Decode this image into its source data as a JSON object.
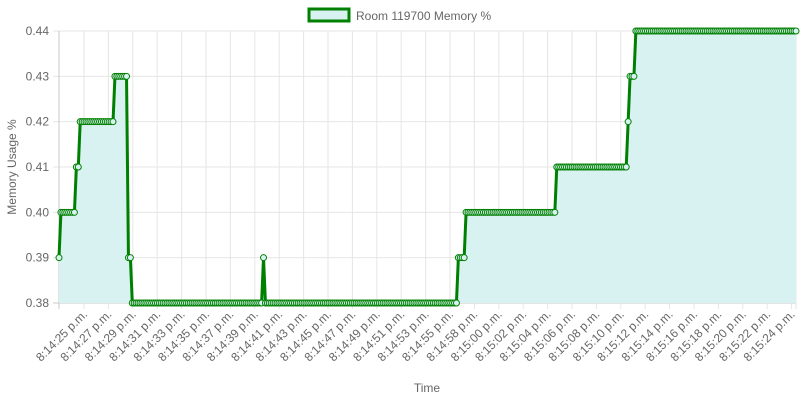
{
  "chart_data": {
    "type": "line",
    "title": "",
    "xlabel": "Time",
    "ylabel": "Memory Usage %",
    "ylim": [
      0.38,
      0.44
    ],
    "yticks": [
      "0.38",
      "0.39",
      "0.40",
      "0.41",
      "0.42",
      "0.43",
      "0.44"
    ],
    "grid": true,
    "legend_position": "top-center",
    "tick_labels": [
      "8:14:25 p.m.",
      "8:14:27 p.m.",
      "8:14:29 p.m.",
      "8:14:31 p.m.",
      "8:14:33 p.m.",
      "8:14:35 p.m.",
      "8:14:37 p.m.",
      "8:14:39 p.m.",
      "8:14:41 p.m.",
      "8:14:43 p.m.",
      "8:14:45 p.m.",
      "8:14:47 p.m.",
      "8:14:49 p.m.",
      "8:14:51 p.m.",
      "8:14:53 p.m.",
      "8:14:55 p.m.",
      "8:14:58 p.m.",
      "8:15:00 p.m.",
      "8:15:02 p.m.",
      "8:15:04 p.m.",
      "8:15:06 p.m.",
      "8:15:08 p.m.",
      "8:15:10 p.m.",
      "8:15:12 p.m.",
      "8:15:14 p.m.",
      "8:15:16 p.m.",
      "8:15:18 p.m.",
      "8:15:20 p.m.",
      "8:15:22 p.m.",
      "8:15:24 p.m."
    ],
    "x_range": [
      "8:14:25 p.m.",
      "8:15:25 p.m."
    ],
    "series": [
      {
        "name": "Room 119700 Memory %",
        "line_color": "#008000",
        "fill_color": "#d8f1f1",
        "values": [
          0.39,
          0.4,
          0.4,
          0.4,
          0.4,
          0.4,
          0.4,
          0.4,
          0.4,
          0.41,
          0.41,
          0.42,
          0.42,
          0.42,
          0.42,
          0.42,
          0.42,
          0.42,
          0.42,
          0.42,
          0.42,
          0.42,
          0.42,
          0.42,
          0.42,
          0.42,
          0.42,
          0.42,
          0.42,
          0.43,
          0.43,
          0.43,
          0.43,
          0.43,
          0.43,
          0.43,
          0.39,
          0.39,
          0.38,
          0.38,
          0.38,
          0.38,
          0.38,
          0.38,
          0.38,
          0.38,
          0.38,
          0.38,
          0.38,
          0.38,
          0.38,
          0.38,
          0.38,
          0.38,
          0.38,
          0.38,
          0.38,
          0.38,
          0.38,
          0.38,
          0.38,
          0.38,
          0.38,
          0.38,
          0.38,
          0.38,
          0.38,
          0.38,
          0.38,
          0.38,
          0.38,
          0.38,
          0.38,
          0.38,
          0.38,
          0.38,
          0.38,
          0.38,
          0.38,
          0.38,
          0.38,
          0.38,
          0.38,
          0.38,
          0.38,
          0.38,
          0.38,
          0.38,
          0.38,
          0.38,
          0.38,
          0.38,
          0.38,
          0.38,
          0.38,
          0.38,
          0.38,
          0.38,
          0.38,
          0.38,
          0.38,
          0.38,
          0.38,
          0.38,
          0.38,
          0.38,
          0.39,
          0.38,
          0.38,
          0.38,
          0.38,
          0.38,
          0.38,
          0.38,
          0.38,
          0.38,
          0.38,
          0.38,
          0.38,
          0.38,
          0.38,
          0.38,
          0.38,
          0.38,
          0.38,
          0.38,
          0.38,
          0.38,
          0.38,
          0.38,
          0.38,
          0.38,
          0.38,
          0.38,
          0.38,
          0.38,
          0.38,
          0.38,
          0.38,
          0.38,
          0.38,
          0.38,
          0.38,
          0.38,
          0.38,
          0.38,
          0.38,
          0.38,
          0.38,
          0.38,
          0.38,
          0.38,
          0.38,
          0.38,
          0.38,
          0.38,
          0.38,
          0.38,
          0.38,
          0.38,
          0.38,
          0.38,
          0.38,
          0.38,
          0.38,
          0.38,
          0.38,
          0.38,
          0.38,
          0.38,
          0.38,
          0.38,
          0.38,
          0.38,
          0.38,
          0.38,
          0.38,
          0.38,
          0.38,
          0.38,
          0.38,
          0.38,
          0.38,
          0.38,
          0.38,
          0.38,
          0.38,
          0.38,
          0.38,
          0.38,
          0.38,
          0.38,
          0.38,
          0.38,
          0.38,
          0.38,
          0.38,
          0.38,
          0.38,
          0.38,
          0.38,
          0.38,
          0.38,
          0.38,
          0.38,
          0.38,
          0.38,
          0.39,
          0.39,
          0.39,
          0.39,
          0.4,
          0.4,
          0.4,
          0.4,
          0.4,
          0.4,
          0.4,
          0.4,
          0.4,
          0.4,
          0.4,
          0.4,
          0.4,
          0.4,
          0.4,
          0.4,
          0.4,
          0.4,
          0.4,
          0.4,
          0.4,
          0.4,
          0.4,
          0.4,
          0.4,
          0.4,
          0.4,
          0.4,
          0.4,
          0.4,
          0.4,
          0.4,
          0.4,
          0.4,
          0.4,
          0.4,
          0.4,
          0.4,
          0.4,
          0.4,
          0.4,
          0.4,
          0.4,
          0.4,
          0.4,
          0.4,
          0.4,
          0.41,
          0.41,
          0.41,
          0.41,
          0.41,
          0.41,
          0.41,
          0.41,
          0.41,
          0.41,
          0.41,
          0.41,
          0.41,
          0.41,
          0.41,
          0.41,
          0.41,
          0.41,
          0.41,
          0.41,
          0.41,
          0.41,
          0.41,
          0.41,
          0.41,
          0.41,
          0.41,
          0.41,
          0.41,
          0.41,
          0.41,
          0.41,
          0.41,
          0.41,
          0.41,
          0.41,
          0.41,
          0.42,
          0.43,
          0.43,
          0.43,
          0.44,
          0.44,
          0.44,
          0.44,
          0.44,
          0.44,
          0.44,
          0.44,
          0.44,
          0.44,
          0.44,
          0.44,
          0.44,
          0.44,
          0.44,
          0.44,
          0.44,
          0.44,
          0.44,
          0.44,
          0.44,
          0.44,
          0.44,
          0.44,
          0.44,
          0.44,
          0.44,
          0.44,
          0.44,
          0.44,
          0.44,
          0.44,
          0.44,
          0.44,
          0.44,
          0.44,
          0.44,
          0.44,
          0.44,
          0.44,
          0.44,
          0.44,
          0.44,
          0.44,
          0.44,
          0.44,
          0.44,
          0.44,
          0.44,
          0.44,
          0.44,
          0.44,
          0.44,
          0.44,
          0.44,
          0.44,
          0.44,
          0.44,
          0.44,
          0.44,
          0.44,
          0.44,
          0.44,
          0.44,
          0.44,
          0.44,
          0.44,
          0.44,
          0.44,
          0.44,
          0.44,
          0.44,
          0.44,
          0.44,
          0.44,
          0.44,
          0.44,
          0.44,
          0.44,
          0.44,
          0.44,
          0.44,
          0.44,
          0.44
        ]
      }
    ]
  }
}
